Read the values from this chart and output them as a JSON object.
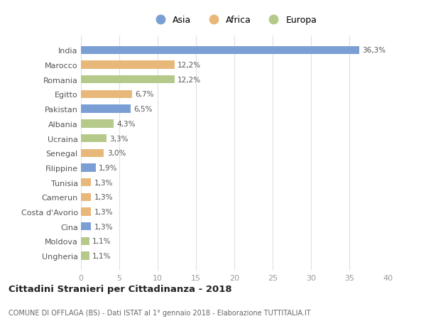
{
  "countries": [
    "India",
    "Marocco",
    "Romania",
    "Egitto",
    "Pakistan",
    "Albania",
    "Ucraina",
    "Senegal",
    "Filippine",
    "Tunisia",
    "Camerun",
    "Costa d'Avorio",
    "Cina",
    "Moldova",
    "Ungheria"
  ],
  "values": [
    36.3,
    12.2,
    12.2,
    6.7,
    6.5,
    4.3,
    3.3,
    3.0,
    1.9,
    1.3,
    1.3,
    1.3,
    1.3,
    1.1,
    1.1
  ],
  "labels": [
    "36,3%",
    "12,2%",
    "12,2%",
    "6,7%",
    "6,5%",
    "4,3%",
    "3,3%",
    "3,0%",
    "1,9%",
    "1,3%",
    "1,3%",
    "1,3%",
    "1,3%",
    "1,1%",
    "1,1%"
  ],
  "continents": [
    "Asia",
    "Africa",
    "Europa",
    "Africa",
    "Asia",
    "Europa",
    "Europa",
    "Africa",
    "Asia",
    "Africa",
    "Africa",
    "Africa",
    "Asia",
    "Europa",
    "Europa"
  ],
  "colors": {
    "Asia": "#7b9fd4",
    "Africa": "#e8b87a",
    "Europa": "#b5c98a"
  },
  "legend_order": [
    "Asia",
    "Africa",
    "Europa"
  ],
  "title": "Cittadini Stranieri per Cittadinanza - 2018",
  "subtitle": "COMUNE DI OFFLAGA (BS) - Dati ISTAT al 1° gennaio 2018 - Elaborazione TUTTITALIA.IT",
  "xlim": [
    0,
    40
  ],
  "xticks": [
    0,
    5,
    10,
    15,
    20,
    25,
    30,
    35,
    40
  ],
  "background_color": "#ffffff",
  "grid_color": "#e0e0e0",
  "bar_height": 0.55
}
